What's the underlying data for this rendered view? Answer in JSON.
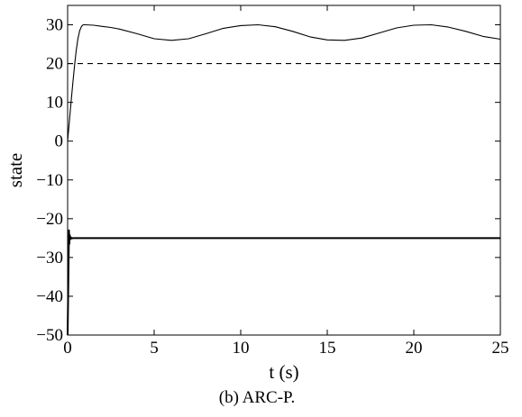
{
  "chart_data": {
    "type": "line",
    "xlabel": "t (s)",
    "ylabel": "state",
    "caption": "(b) ARC-P.",
    "xlim": [
      0,
      25
    ],
    "ylim": [
      -50,
      35
    ],
    "xticks": [
      0,
      5,
      10,
      15,
      20,
      25
    ],
    "yticks": [
      -50,
      -40,
      -30,
      -20,
      -10,
      0,
      10,
      20,
      30
    ],
    "grid": false,
    "legend": "none",
    "series": [
      {
        "style": "solid",
        "color": "#000000",
        "x": [
          0,
          0.1,
          0.2,
          0.3,
          0.4,
          0.5,
          0.6,
          0.7,
          0.8,
          0.9,
          1.0,
          1.5,
          2,
          2.5,
          3,
          4,
          5,
          6,
          7,
          8,
          9,
          10,
          11,
          12,
          13,
          14,
          15,
          16,
          17,
          18,
          19,
          20,
          21,
          22,
          23,
          24,
          25
        ],
        "values": [
          0,
          5,
          10,
          15,
          19.5,
          23.5,
          26.5,
          28.5,
          29.6,
          30,
          30,
          29.9,
          29.6,
          29.3,
          28.9,
          27.7,
          26.4,
          26,
          26.4,
          27.7,
          29.1,
          29.8,
          30,
          29.5,
          28.3,
          26.9,
          26.1,
          26,
          26.6,
          27.9,
          29.2,
          29.9,
          30,
          29.4,
          28.3,
          27,
          26.3
        ]
      },
      {
        "style": "dashed",
        "color": "#000000",
        "x": [
          0,
          25
        ],
        "values": [
          20,
          20
        ]
      },
      {
        "style": "solid-thick",
        "color": "#000000",
        "x": [
          0,
          0.05,
          0.08,
          0.1,
          0.12,
          0.15,
          0.18,
          0.22,
          0.3,
          0.5,
          1,
          5,
          10,
          15,
          20,
          25
        ],
        "values": [
          -50,
          -32,
          -23,
          -26.5,
          -24.2,
          -25.3,
          -24.8,
          -25.1,
          -25,
          -25,
          -25,
          -25,
          -25,
          -25,
          -25,
          -25
        ]
      }
    ]
  }
}
